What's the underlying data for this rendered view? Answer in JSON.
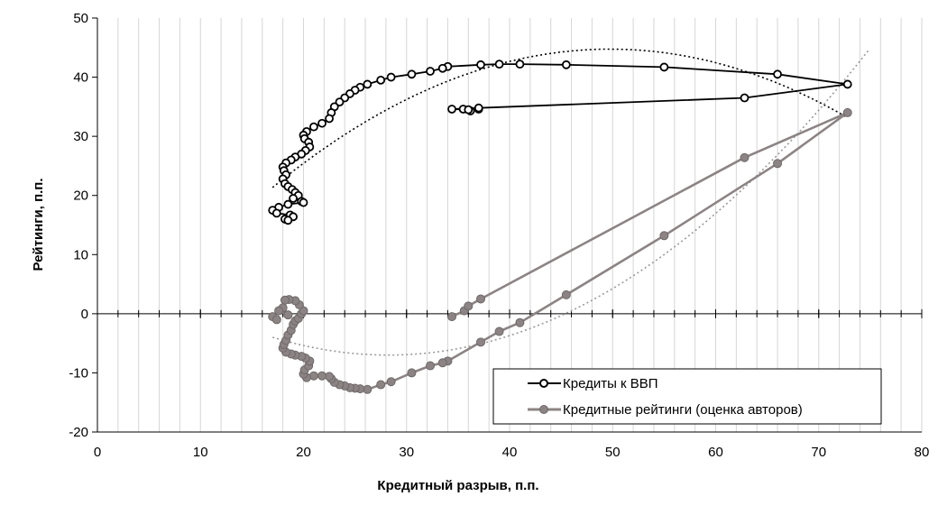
{
  "chart_data": {
    "type": "scatter",
    "xlabel": "Кредитный разрыв, п.п.",
    "ylabel": "Рейтинги, п.п.",
    "xlim": [
      0,
      80
    ],
    "ylim": [
      -20,
      50
    ],
    "x_ticks": [
      0,
      10,
      20,
      30,
      40,
      50,
      60,
      70,
      80
    ],
    "y_ticks": [
      -20,
      -10,
      0,
      10,
      20,
      30,
      40,
      50
    ],
    "grid": "vertical-minor",
    "legend_position": "bottom-right",
    "series": [
      {
        "name": "Кредиты к ВВП",
        "color": "#000000",
        "marker": "open-circle",
        "points": [
          [
            35.5,
            34.6
          ],
          [
            36.2,
            34.3
          ],
          [
            37.0,
            34.6
          ],
          [
            36.0,
            34.5
          ],
          [
            34.4,
            34.6
          ],
          [
            37.0,
            34.8
          ],
          [
            62.8,
            36.5
          ],
          [
            72.8,
            38.8
          ],
          [
            66.0,
            40.5
          ],
          [
            55.0,
            41.7
          ],
          [
            45.5,
            42.1
          ],
          [
            41.0,
            42.2
          ],
          [
            39.0,
            42.2
          ],
          [
            37.2,
            42.1
          ],
          [
            34.0,
            41.8
          ],
          [
            33.5,
            41.5
          ],
          [
            32.3,
            41.0
          ],
          [
            30.5,
            40.5
          ],
          [
            28.5,
            40.0
          ],
          [
            27.5,
            39.5
          ],
          [
            26.2,
            38.8
          ],
          [
            25.5,
            38.3
          ],
          [
            25.0,
            37.8
          ],
          [
            24.5,
            37.2
          ],
          [
            24.0,
            36.5
          ],
          [
            23.5,
            35.8
          ],
          [
            23.0,
            35.0
          ],
          [
            22.7,
            34.0
          ],
          [
            22.5,
            33.0
          ],
          [
            21.8,
            32.2
          ],
          [
            21.0,
            31.6
          ],
          [
            20.3,
            30.8
          ],
          [
            20.0,
            30.2
          ],
          [
            20.1,
            29.6
          ],
          [
            20.5,
            29.0
          ],
          [
            20.6,
            28.2
          ],
          [
            20.2,
            27.6
          ],
          [
            19.8,
            27.0
          ],
          [
            19.2,
            26.5
          ],
          [
            18.8,
            26.0
          ],
          [
            18.3,
            25.5
          ],
          [
            18.0,
            24.8
          ],
          [
            18.1,
            24.2
          ],
          [
            18.3,
            23.5
          ],
          [
            18.0,
            22.8
          ],
          [
            18.2,
            22.0
          ],
          [
            18.5,
            21.5
          ],
          [
            18.9,
            21.0
          ],
          [
            19.2,
            20.5
          ],
          [
            19.5,
            20.0
          ],
          [
            19.0,
            19.5
          ],
          [
            19.8,
            19.0
          ],
          [
            20.0,
            18.8
          ],
          [
            18.5,
            18.5
          ],
          [
            17.6,
            18.0
          ],
          [
            17.0,
            17.5
          ],
          [
            17.4,
            17.0
          ],
          [
            18.7,
            16.7
          ],
          [
            19.0,
            16.4
          ],
          [
            18.2,
            16.0
          ],
          [
            18.5,
            15.8
          ]
        ]
      },
      {
        "name": "Кредитные рейтинги (оценка авторов)",
        "color": "#8c8484",
        "marker": "filled-circle",
        "points": [
          [
            34.4,
            -0.5
          ],
          [
            35.6,
            0.5
          ],
          [
            36.0,
            1.3
          ],
          [
            37.2,
            2.5
          ],
          [
            62.8,
            26.4
          ],
          [
            72.8,
            34.0
          ],
          [
            66.0,
            25.4
          ],
          [
            55.0,
            13.2
          ],
          [
            45.5,
            3.2
          ],
          [
            41.0,
            -1.5
          ],
          [
            39.0,
            -3.0
          ],
          [
            37.2,
            -4.8
          ],
          [
            34.0,
            -8.0
          ],
          [
            33.5,
            -8.3
          ],
          [
            32.3,
            -8.8
          ],
          [
            30.5,
            -10.0
          ],
          [
            28.5,
            -11.5
          ],
          [
            27.5,
            -12.0
          ],
          [
            26.2,
            -12.8
          ],
          [
            25.5,
            -12.7
          ],
          [
            25.0,
            -12.6
          ],
          [
            24.5,
            -12.5
          ],
          [
            24.0,
            -12.2
          ],
          [
            23.5,
            -12.0
          ],
          [
            23.0,
            -11.6
          ],
          [
            22.7,
            -11.0
          ],
          [
            22.5,
            -10.6
          ],
          [
            21.8,
            -10.5
          ],
          [
            21.0,
            -10.5
          ],
          [
            20.3,
            -10.8
          ],
          [
            20.0,
            -10.2
          ],
          [
            20.1,
            -9.5
          ],
          [
            20.5,
            -8.8
          ],
          [
            20.6,
            -8.0
          ],
          [
            20.2,
            -7.5
          ],
          [
            19.8,
            -7.2
          ],
          [
            19.2,
            -7.0
          ],
          [
            18.8,
            -6.8
          ],
          [
            18.3,
            -6.5
          ],
          [
            18.0,
            -5.8
          ],
          [
            18.1,
            -5.2
          ],
          [
            18.3,
            -4.5
          ],
          [
            18.5,
            -3.6
          ],
          [
            18.8,
            -2.8
          ],
          [
            19.0,
            -1.8
          ],
          [
            19.2,
            -1.2
          ],
          [
            19.5,
            -0.8
          ],
          [
            19.8,
            0.0
          ],
          [
            20.0,
            0.5
          ],
          [
            19.6,
            1.5
          ],
          [
            19.2,
            2.2
          ],
          [
            18.6,
            2.4
          ],
          [
            18.2,
            2.3
          ],
          [
            18.0,
            1.0
          ],
          [
            18.5,
            -0.2
          ],
          [
            17.6,
            0.5
          ],
          [
            17.0,
            -0.5
          ],
          [
            17.4,
            -1.0
          ]
        ]
      }
    ]
  }
}
